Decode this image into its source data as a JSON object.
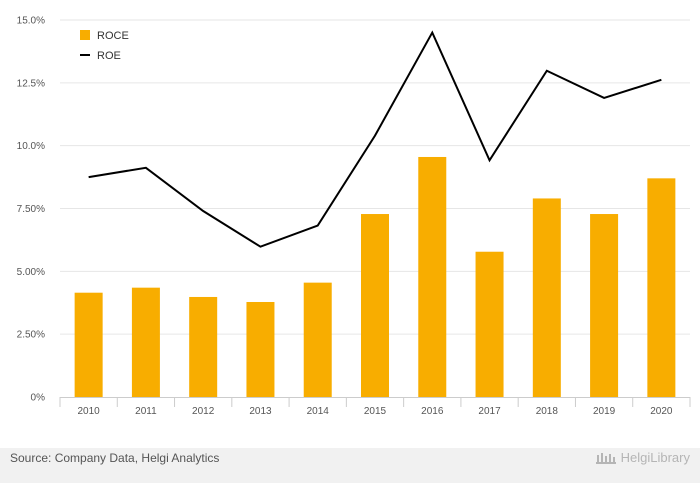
{
  "chart_data": {
    "type": "bar",
    "categories": [
      "2010",
      "2011",
      "2012",
      "2013",
      "2014",
      "2015",
      "2016",
      "2017",
      "2018",
      "2019",
      "2020"
    ],
    "series": [
      {
        "name": "ROCE",
        "type": "bar",
        "color": "#f8ad00",
        "values": [
          4.15,
          4.35,
          3.98,
          3.78,
          4.55,
          7.28,
          9.55,
          5.78,
          7.9,
          7.28,
          8.7
        ]
      },
      {
        "name": "ROE",
        "type": "line",
        "color": "#000000",
        "values": [
          8.75,
          9.12,
          7.4,
          5.98,
          6.82,
          10.4,
          14.5,
          9.42,
          12.98,
          11.9,
          12.62
        ]
      }
    ],
    "y_ticks": [
      "0%",
      "2.50%",
      "5.00%",
      "7.50%",
      "10.0%",
      "12.5%",
      "15.0%"
    ],
    "ylim": [
      0,
      15
    ],
    "grid": true,
    "legend": "top-left"
  },
  "footer": {
    "source": "Source: Company Data, Helgi Analytics",
    "brand": "HelgiLibrary"
  }
}
